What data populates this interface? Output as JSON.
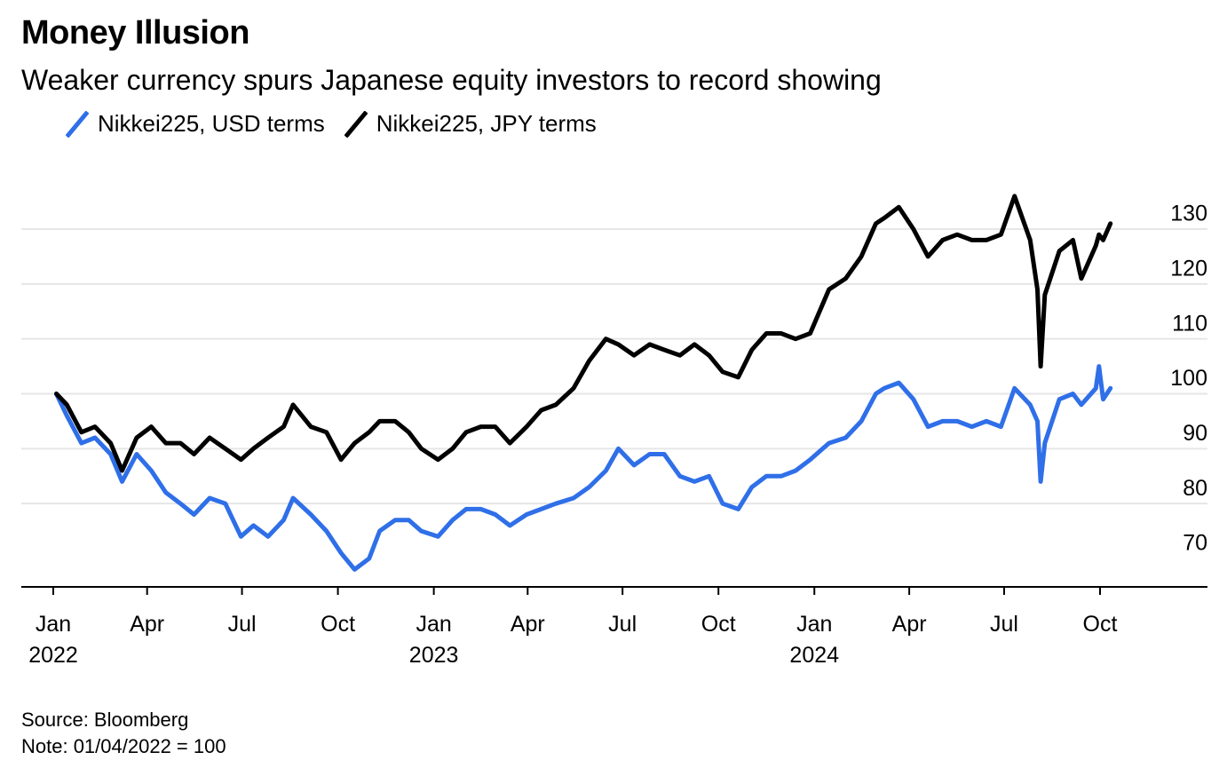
{
  "title": "Money Illusion",
  "subtitle": "Weaker currency spurs Japanese equity investors to record showing",
  "legend": [
    {
      "label": "Nikkei225, USD terms",
      "color": "#2f6fe8"
    },
    {
      "label": "Nikkei225, JPY terms",
      "color": "#000000"
    }
  ],
  "footer": {
    "source": "Source: Bloomberg",
    "note": "Note: 01/04/2022 = 100"
  },
  "chart_data": {
    "type": "line",
    "y_ticks": [
      70,
      80,
      90,
      100,
      110,
      120,
      130
    ],
    "ylim": [
      65,
      140
    ],
    "y_axis_position": "right",
    "grid": true,
    "x_ticks": [
      {
        "label": "Jan",
        "year": "2022",
        "date": "2022-01-01"
      },
      {
        "label": "Apr",
        "year": "",
        "date": "2022-04-01"
      },
      {
        "label": "Jul",
        "year": "",
        "date": "2022-07-01"
      },
      {
        "label": "Oct",
        "year": "",
        "date": "2022-10-01"
      },
      {
        "label": "Jan",
        "year": "2023",
        "date": "2023-01-01"
      },
      {
        "label": "Apr",
        "year": "",
        "date": "2023-04-01"
      },
      {
        "label": "Jul",
        "year": "",
        "date": "2023-07-01"
      },
      {
        "label": "Oct",
        "year": "",
        "date": "2023-10-01"
      },
      {
        "label": "Jan",
        "year": "2024",
        "date": "2024-01-01"
      },
      {
        "label": "Apr",
        "year": "",
        "date": "2024-04-01"
      },
      {
        "label": "Jul",
        "year": "",
        "date": "2024-07-01"
      },
      {
        "label": "Oct",
        "year": "",
        "date": "2024-10-01"
      }
    ],
    "xlim": [
      "2021-12-20",
      "2024-12-31"
    ],
    "series": [
      {
        "name": "Nikkei225, USD terms",
        "color": "#2f6fe8",
        "points": [
          [
            "2022-01-04",
            100
          ],
          [
            "2022-01-14",
            96
          ],
          [
            "2022-01-28",
            91
          ],
          [
            "2022-02-10",
            92
          ],
          [
            "2022-02-25",
            89
          ],
          [
            "2022-03-08",
            84
          ],
          [
            "2022-03-22",
            89
          ],
          [
            "2022-04-05",
            86
          ],
          [
            "2022-04-19",
            82
          ],
          [
            "2022-05-03",
            80
          ],
          [
            "2022-05-16",
            78
          ],
          [
            "2022-05-31",
            81
          ],
          [
            "2022-06-15",
            80
          ],
          [
            "2022-06-30",
            74
          ],
          [
            "2022-07-12",
            76
          ],
          [
            "2022-07-26",
            74
          ],
          [
            "2022-08-10",
            77
          ],
          [
            "2022-08-19",
            81
          ],
          [
            "2022-09-05",
            78
          ],
          [
            "2022-09-20",
            75
          ],
          [
            "2022-10-04",
            71
          ],
          [
            "2022-10-17",
            68
          ],
          [
            "2022-10-31",
            70
          ],
          [
            "2022-11-10",
            75
          ],
          [
            "2022-11-25",
            77
          ],
          [
            "2022-12-08",
            77
          ],
          [
            "2022-12-20",
            75
          ],
          [
            "2023-01-05",
            74
          ],
          [
            "2023-01-19",
            77
          ],
          [
            "2023-02-01",
            79
          ],
          [
            "2023-02-15",
            79
          ],
          [
            "2023-03-01",
            78
          ],
          [
            "2023-03-15",
            76
          ],
          [
            "2023-03-31",
            78
          ],
          [
            "2023-04-14",
            79
          ],
          [
            "2023-04-28",
            80
          ],
          [
            "2023-05-15",
            81
          ],
          [
            "2023-05-30",
            83
          ],
          [
            "2023-06-15",
            86
          ],
          [
            "2023-06-27",
            90
          ],
          [
            "2023-07-12",
            87
          ],
          [
            "2023-07-27",
            89
          ],
          [
            "2023-08-10",
            89
          ],
          [
            "2023-08-25",
            85
          ],
          [
            "2023-09-08",
            84
          ],
          [
            "2023-09-22",
            85
          ],
          [
            "2023-10-05",
            80
          ],
          [
            "2023-10-20",
            79
          ],
          [
            "2023-11-02",
            83
          ],
          [
            "2023-11-16",
            85
          ],
          [
            "2023-11-30",
            85
          ],
          [
            "2023-12-14",
            86
          ],
          [
            "2023-12-28",
            88
          ],
          [
            "2024-01-15",
            91
          ],
          [
            "2024-01-31",
            92
          ],
          [
            "2024-02-15",
            95
          ],
          [
            "2024-02-29",
            100
          ],
          [
            "2024-03-08",
            101
          ],
          [
            "2024-03-22",
            102
          ],
          [
            "2024-04-05",
            99
          ],
          [
            "2024-04-19",
            94
          ],
          [
            "2024-05-03",
            95
          ],
          [
            "2024-05-17",
            95
          ],
          [
            "2024-05-31",
            94
          ],
          [
            "2024-06-14",
            95
          ],
          [
            "2024-06-28",
            94
          ],
          [
            "2024-07-11",
            101
          ],
          [
            "2024-07-26",
            98
          ],
          [
            "2024-08-02",
            95
          ],
          [
            "2024-08-05",
            84
          ],
          [
            "2024-08-09",
            91
          ],
          [
            "2024-08-23",
            99
          ],
          [
            "2024-09-05",
            100
          ],
          [
            "2024-09-13",
            98
          ],
          [
            "2024-09-27",
            101
          ],
          [
            "2024-09-30",
            105
          ],
          [
            "2024-10-04",
            99
          ],
          [
            "2024-10-11",
            101
          ]
        ]
      },
      {
        "name": "Nikkei225, JPY terms",
        "color": "#000000",
        "points": [
          [
            "2022-01-04",
            100
          ],
          [
            "2022-01-14",
            98
          ],
          [
            "2022-01-28",
            93
          ],
          [
            "2022-02-10",
            94
          ],
          [
            "2022-02-25",
            91
          ],
          [
            "2022-03-08",
            86
          ],
          [
            "2022-03-22",
            92
          ],
          [
            "2022-04-05",
            94
          ],
          [
            "2022-04-19",
            91
          ],
          [
            "2022-05-03",
            91
          ],
          [
            "2022-05-16",
            89
          ],
          [
            "2022-05-31",
            92
          ],
          [
            "2022-06-15",
            90
          ],
          [
            "2022-06-30",
            88
          ],
          [
            "2022-07-12",
            90
          ],
          [
            "2022-07-26",
            92
          ],
          [
            "2022-08-10",
            94
          ],
          [
            "2022-08-19",
            98
          ],
          [
            "2022-09-05",
            94
          ],
          [
            "2022-09-20",
            93
          ],
          [
            "2022-10-04",
            88
          ],
          [
            "2022-10-17",
            91
          ],
          [
            "2022-10-31",
            93
          ],
          [
            "2022-11-10",
            95
          ],
          [
            "2022-11-25",
            95
          ],
          [
            "2022-12-08",
            93
          ],
          [
            "2022-12-20",
            90
          ],
          [
            "2023-01-05",
            88
          ],
          [
            "2023-01-19",
            90
          ],
          [
            "2023-02-01",
            93
          ],
          [
            "2023-02-15",
            94
          ],
          [
            "2023-03-01",
            94
          ],
          [
            "2023-03-15",
            91
          ],
          [
            "2023-03-31",
            94
          ],
          [
            "2023-04-14",
            97
          ],
          [
            "2023-04-28",
            98
          ],
          [
            "2023-05-15",
            101
          ],
          [
            "2023-05-30",
            106
          ],
          [
            "2023-06-15",
            110
          ],
          [
            "2023-06-27",
            109
          ],
          [
            "2023-07-12",
            107
          ],
          [
            "2023-07-27",
            109
          ],
          [
            "2023-08-10",
            108
          ],
          [
            "2023-08-25",
            107
          ],
          [
            "2023-09-08",
            109
          ],
          [
            "2023-09-22",
            107
          ],
          [
            "2023-10-05",
            104
          ],
          [
            "2023-10-20",
            103
          ],
          [
            "2023-11-02",
            108
          ],
          [
            "2023-11-16",
            111
          ],
          [
            "2023-11-30",
            111
          ],
          [
            "2023-12-14",
            110
          ],
          [
            "2023-12-28",
            111
          ],
          [
            "2024-01-15",
            119
          ],
          [
            "2024-01-31",
            121
          ],
          [
            "2024-02-15",
            125
          ],
          [
            "2024-02-29",
            131
          ],
          [
            "2024-03-08",
            132
          ],
          [
            "2024-03-22",
            134
          ],
          [
            "2024-04-05",
            130
          ],
          [
            "2024-04-19",
            125
          ],
          [
            "2024-05-03",
            128
          ],
          [
            "2024-05-17",
            129
          ],
          [
            "2024-05-31",
            128
          ],
          [
            "2024-06-14",
            128
          ],
          [
            "2024-06-28",
            129
          ],
          [
            "2024-07-11",
            136
          ],
          [
            "2024-07-26",
            128
          ],
          [
            "2024-08-02",
            119
          ],
          [
            "2024-08-05",
            105
          ],
          [
            "2024-08-09",
            118
          ],
          [
            "2024-08-23",
            126
          ],
          [
            "2024-09-05",
            128
          ],
          [
            "2024-09-13",
            121
          ],
          [
            "2024-09-27",
            127
          ],
          [
            "2024-09-30",
            129
          ],
          [
            "2024-10-04",
            128
          ],
          [
            "2024-10-11",
            131
          ]
        ]
      }
    ]
  }
}
